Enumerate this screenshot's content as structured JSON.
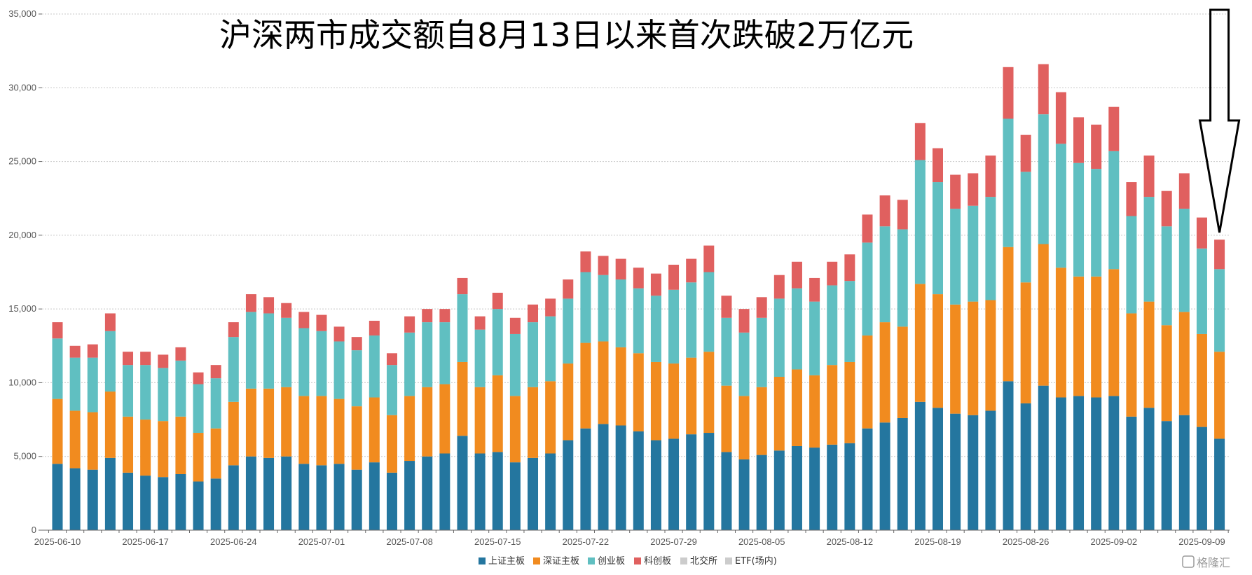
{
  "chart_data": {
    "type": "bar",
    "stacked": true,
    "title": "沪深两市成交额自8月13日以来首次跌破2万亿元",
    "xlabel": "",
    "ylabel": "",
    "ylim": [
      0,
      35000
    ],
    "yticks": [
      0,
      5000,
      10000,
      15000,
      20000,
      25000,
      30000,
      35000
    ],
    "ytick_labels": [
      "0",
      "5,000",
      "10,000",
      "15,000",
      "20,000",
      "25,000",
      "30,000",
      "35,000"
    ],
    "grid": true,
    "legend_position": "bottom",
    "x_tick_labels": [
      "2025-06-10",
      "2025-06-17",
      "2025-06-24",
      "2025-07-01",
      "2025-07-08",
      "2025-07-15",
      "2025-07-22",
      "2025-07-29",
      "2025-08-05",
      "2025-08-12",
      "2025-08-19",
      "2025-08-26",
      "2025-09-02",
      "2025-09-09"
    ],
    "x_tick_index": [
      0,
      5,
      10,
      15,
      20,
      25,
      30,
      35,
      40,
      45,
      50,
      55,
      60,
      65
    ],
    "categories": [
      "2025-06-10",
      "2025-06-11",
      "2025-06-12",
      "2025-06-13",
      "2025-06-16",
      "2025-06-17",
      "2025-06-18",
      "2025-06-19",
      "2025-06-20",
      "2025-06-23",
      "2025-06-24",
      "2025-06-25",
      "2025-06-26",
      "2025-06-27",
      "2025-06-30",
      "2025-07-01",
      "2025-07-02",
      "2025-07-03",
      "2025-07-04",
      "2025-07-07",
      "2025-07-08",
      "2025-07-09",
      "2025-07-10",
      "2025-07-11",
      "2025-07-14",
      "2025-07-15",
      "2025-07-16",
      "2025-07-17",
      "2025-07-18",
      "2025-07-21",
      "2025-07-22",
      "2025-07-23",
      "2025-07-24",
      "2025-07-25",
      "2025-07-28",
      "2025-07-29",
      "2025-07-30",
      "2025-07-31",
      "2025-08-01",
      "2025-08-04",
      "2025-08-05",
      "2025-08-06",
      "2025-08-07",
      "2025-08-08",
      "2025-08-11",
      "2025-08-12",
      "2025-08-13",
      "2025-08-14",
      "2025-08-15",
      "2025-08-18",
      "2025-08-19",
      "2025-08-20",
      "2025-08-21",
      "2025-08-22",
      "2025-08-25",
      "2025-08-26",
      "2025-08-27",
      "2025-08-28",
      "2025-08-29",
      "2025-09-01",
      "2025-09-02",
      "2025-09-03",
      "2025-09-04",
      "2025-09-05",
      "2025-09-08",
      "2025-09-09",
      "2025-09-10"
    ],
    "series": [
      {
        "name": "上证主板",
        "color": "#24769f",
        "values": [
          4500,
          4200,
          4100,
          4900,
          3900,
          3700,
          3600,
          3800,
          3300,
          3500,
          4400,
          5000,
          4900,
          5000,
          4500,
          4400,
          4500,
          4100,
          4600,
          3900,
          4700,
          5000,
          5200,
          6400,
          5200,
          5300,
          4600,
          4900,
          5200,
          6100,
          6900,
          7200,
          7100,
          6700,
          6100,
          6200,
          6500,
          6600,
          5300,
          4800,
          5100,
          5400,
          5700,
          5600,
          5800,
          5900,
          6900,
          7300,
          7600,
          8700,
          8300,
          7900,
          7800,
          8100,
          10100,
          8600,
          9800,
          9000,
          9100,
          9000,
          9100,
          7700,
          8300,
          7400,
          7800,
          7000,
          6200
        ]
      },
      {
        "name": "深证主板",
        "color": "#f18b1f",
        "values": [
          4400,
          3900,
          3900,
          4500,
          3800,
          3800,
          3800,
          3900,
          3300,
          3400,
          4300,
          4600,
          4700,
          4700,
          4600,
          4700,
          4400,
          4300,
          4400,
          3900,
          4400,
          4700,
          4700,
          5000,
          4500,
          5200,
          4500,
          4800,
          4900,
          5200,
          5800,
          5600,
          5300,
          5300,
          5300,
          5100,
          5200,
          5500,
          4500,
          4300,
          4600,
          5000,
          5200,
          4900,
          5400,
          5500,
          6300,
          6800,
          6200,
          8000,
          7700,
          7400,
          7700,
          7500,
          9100,
          8200,
          9600,
          8800,
          8100,
          8200,
          8600,
          7000,
          7200,
          6500,
          7000,
          6300,
          5900
        ]
      },
      {
        "name": "创业板",
        "color": "#60bfc1",
        "values": [
          4100,
          3600,
          3700,
          4100,
          3500,
          3700,
          3600,
          3800,
          3300,
          3400,
          4400,
          5200,
          5100,
          4700,
          4600,
          4400,
          3900,
          3800,
          4200,
          3400,
          4300,
          4400,
          4200,
          4600,
          3900,
          4500,
          4200,
          4400,
          4400,
          4400,
          4800,
          4500,
          4600,
          4400,
          4500,
          5000,
          5100,
          5400,
          4600,
          4300,
          4700,
          5300,
          5500,
          5000,
          5400,
          5500,
          6300,
          6500,
          6600,
          8400,
          7600,
          6500,
          6500,
          7000,
          8700,
          7500,
          8800,
          8400,
          7700,
          7300,
          8000,
          6600,
          7100,
          6700,
          7000,
          5800,
          5600
        ]
      },
      {
        "name": "科创板",
        "color": "#e0605f",
        "values": [
          1100,
          800,
          900,
          1200,
          900,
          900,
          900,
          900,
          800,
          900,
          1000,
          1200,
          1100,
          1000,
          1100,
          1100,
          1000,
          900,
          1000,
          800,
          1100,
          900,
          900,
          1100,
          900,
          1100,
          1100,
          1200,
          1200,
          1300,
          1400,
          1300,
          1400,
          1400,
          1500,
          1700,
          1600,
          1800,
          1500,
          1600,
          1400,
          1600,
          1800,
          1600,
          1600,
          1800,
          1900,
          2100,
          2000,
          2500,
          2300,
          2300,
          2200,
          2800,
          3500,
          2500,
          3400,
          3500,
          3100,
          3000,
          3000,
          2300,
          2800,
          2400,
          2400,
          2100,
          2000
        ]
      }
    ],
    "legend": [
      {
        "name": "上证主板",
        "color": "#24769f",
        "active": true
      },
      {
        "name": "深证主板",
        "color": "#f18b1f",
        "active": true
      },
      {
        "name": "创业板",
        "color": "#60bfc1",
        "active": true
      },
      {
        "name": "科创板",
        "color": "#e0605f",
        "active": true
      },
      {
        "name": "北交所",
        "color": "#cccccc",
        "active": false
      },
      {
        "name": "ETF(场内)",
        "color": "#cccccc",
        "active": false
      }
    ],
    "annotations": [
      {
        "type": "arrow",
        "direction": "down",
        "target_category": "2025-09-10",
        "color": "#000000"
      }
    ]
  },
  "watermark": {
    "text": "格隆汇",
    "icon": "watermark-logo-icon"
  }
}
